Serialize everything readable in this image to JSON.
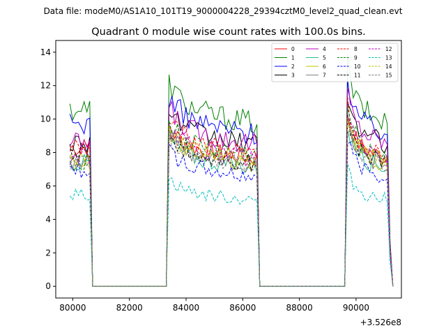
{
  "chart_data": {
    "type": "line",
    "suptitle": "Data file: modeM0/AS1A10_101T19_9000004228_29394cztM0_level2_quad_clean.evt",
    "title": "Quadrant 0 module wise count rates with 100.0s bins.",
    "xlabel": "",
    "ylabel": "",
    "x_offset_label": "+3.526e8",
    "xlim": [
      79400,
      91600
    ],
    "ylim": [
      -0.7,
      14.7
    ],
    "x_ticks": [
      80000,
      82000,
      84000,
      86000,
      88000,
      90000
    ],
    "x_tick_labels": [
      "80000",
      "82000",
      "84000",
      "86000",
      "88000",
      "90000"
    ],
    "y_ticks": [
      0,
      2,
      4,
      6,
      8,
      10,
      12,
      14
    ],
    "y_tick_labels": [
      "0",
      "2",
      "4",
      "6",
      "8",
      "10",
      "12",
      "14"
    ],
    "legend_position": "top-right",
    "series": [
      {
        "name": "0",
        "color": "#ff0000",
        "dash": "solid",
        "level": 8.3,
        "early": 1.0
      },
      {
        "name": "1",
        "color": "#008000",
        "dash": "solid",
        "level": 10.6,
        "early": 1.0
      },
      {
        "name": "2",
        "color": "#0000ff",
        "dash": "solid",
        "level": 9.9,
        "early": 0.98
      },
      {
        "name": "3",
        "color": "#000000",
        "dash": "solid",
        "level": 9.2,
        "early": 0.94
      },
      {
        "name": "4",
        "color": "#bf00bf",
        "dash": "solid",
        "level": 9.3,
        "early": 0.92
      },
      {
        "name": "5",
        "color": "#1fbf8f",
        "dash": "solid",
        "level": 7.7,
        "early": 0.96
      },
      {
        "name": "6",
        "color": "#bfbf00",
        "dash": "solid",
        "level": 7.9,
        "early": 0.95
      },
      {
        "name": "7",
        "color": "#808080",
        "dash": "solid",
        "level": 7.9,
        "early": 0.95
      },
      {
        "name": "8",
        "color": "#ff0000",
        "dash": "dashed",
        "level": 8.6,
        "early": 0.97
      },
      {
        "name": "9",
        "color": "#008000",
        "dash": "dashed",
        "level": 8.5,
        "early": 0.88
      },
      {
        "name": "10",
        "color": "#0000ff",
        "dash": "dashed",
        "level": 7.1,
        "early": 0.98
      },
      {
        "name": "11",
        "color": "#000000",
        "dash": "dashed",
        "level": 8.0,
        "early": 1.0
      },
      {
        "name": "12",
        "color": "#bf00bf",
        "dash": "dashed",
        "level": 8.3,
        "early": 0.92
      },
      {
        "name": "13",
        "color": "#00bfbf",
        "dash": "dashed",
        "level": 5.6,
        "early": 0.98
      },
      {
        "name": "14",
        "color": "#bfbf00",
        "dash": "dashed",
        "level": 8.1,
        "early": 0.93
      },
      {
        "name": "15",
        "color": "#808080",
        "dash": "dashed",
        "level": 7.8,
        "early": 0.95
      }
    ],
    "segments": [
      {
        "start": 79900,
        "end": 80600,
        "plateau": "early",
        "peak": 0
      },
      {
        "start": 83400,
        "end": 86500,
        "plateau": "main",
        "peak": 1.15
      },
      {
        "start": 89700,
        "end": 91200,
        "plateau": "main",
        "peak": 1.25
      }
    ],
    "gap_value": 0,
    "x_range": [
      79900,
      91300
    ],
    "bin": 100
  }
}
